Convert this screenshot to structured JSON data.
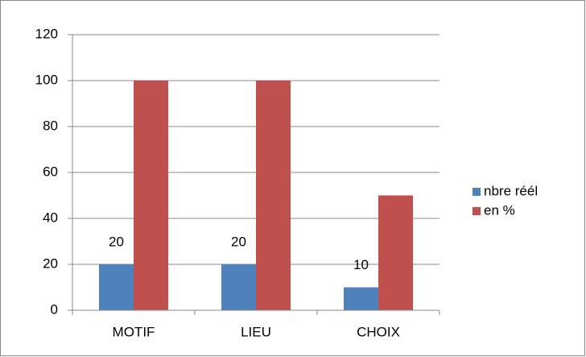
{
  "chart_data": {
    "type": "bar",
    "categories": [
      "MOTIF",
      "LIEU",
      "CHOIX"
    ],
    "series": [
      {
        "name": "nbre réél",
        "color": "#4f81bd",
        "values": [
          20,
          20,
          10
        ],
        "data_labels": true
      },
      {
        "name": "en %",
        "color": "#c0504d",
        "values": [
          100,
          100,
          50
        ]
      }
    ],
    "ylim": [
      0,
      120
    ],
    "yticks": [
      0,
      20,
      40,
      60,
      80,
      100,
      120
    ],
    "grid": true,
    "legend": "right"
  }
}
